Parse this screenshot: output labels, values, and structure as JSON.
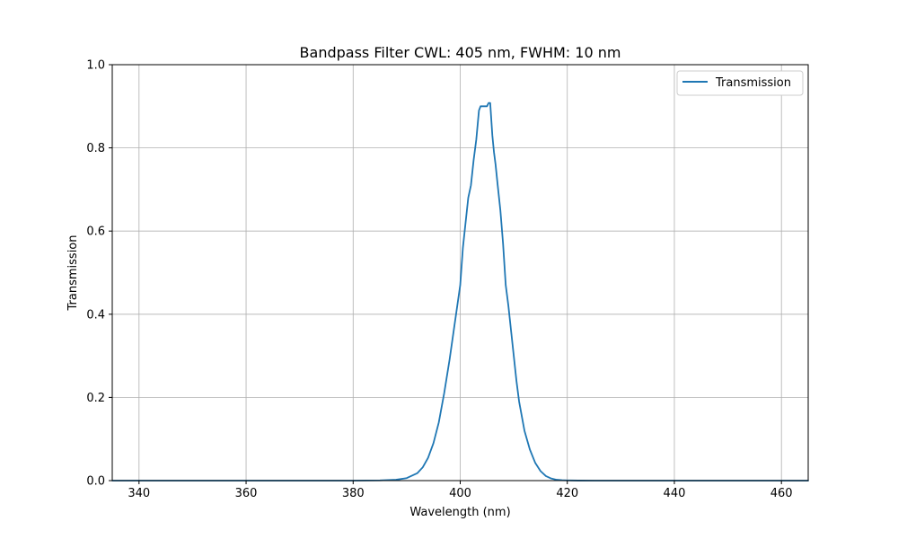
{
  "chart_data": {
    "type": "line",
    "title": "Bandpass Filter CWL: 405 nm, FWHM: 10 nm",
    "xlabel": "Wavelength (nm)",
    "ylabel": "Transmission",
    "xlim": [
      335,
      465
    ],
    "ylim": [
      0,
      1.0
    ],
    "grid": true,
    "legend_position": "top-right",
    "x_ticks": [
      340,
      360,
      380,
      400,
      420,
      440,
      460
    ],
    "x_tick_labels": [
      "340",
      "360",
      "380",
      "400",
      "420",
      "440",
      "460"
    ],
    "y_ticks": [
      0.0,
      0.2,
      0.4,
      0.6,
      0.8,
      1.0
    ],
    "y_tick_labels": [
      "0.0",
      "0.2",
      "0.4",
      "0.6",
      "0.8",
      "1.0"
    ],
    "series": [
      {
        "name": "Transmission",
        "color": "#1f77b4",
        "x": [
          335,
          380,
          385,
          388,
          390,
          392,
          393,
          394,
          395,
          396,
          397,
          398,
          399,
          400,
          400.5,
          401,
          401.5,
          402,
          402.5,
          403,
          403.5,
          403.8,
          404.2,
          404.6,
          405,
          405.3,
          405.6,
          406,
          406.3,
          406.6,
          407,
          407.5,
          408,
          408.5,
          409,
          409.5,
          410,
          410.5,
          411,
          412,
          413,
          414,
          415,
          416,
          417,
          418,
          419,
          420,
          422,
          425,
          430,
          465
        ],
        "y": [
          0.0,
          0.0,
          0.0005,
          0.002,
          0.006,
          0.018,
          0.032,
          0.055,
          0.09,
          0.14,
          0.21,
          0.29,
          0.38,
          0.47,
          0.56,
          0.62,
          0.68,
          0.71,
          0.77,
          0.82,
          0.89,
          0.9,
          0.9,
          0.9,
          0.9,
          0.908,
          0.908,
          0.83,
          0.79,
          0.76,
          0.71,
          0.65,
          0.57,
          0.47,
          0.42,
          0.36,
          0.3,
          0.24,
          0.19,
          0.12,
          0.075,
          0.043,
          0.023,
          0.011,
          0.005,
          0.002,
          0.001,
          0.0005,
          0.0001,
          0.0,
          0.0,
          0.0
        ]
      }
    ]
  }
}
